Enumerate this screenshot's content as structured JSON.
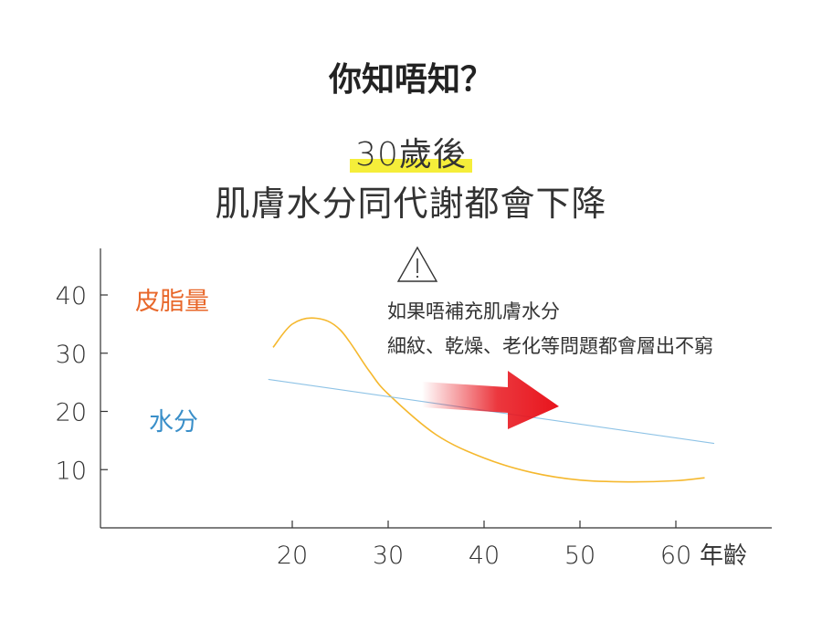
{
  "header": {
    "question": "你知唔知？",
    "highlight": "30歲後",
    "statement": "肌膚水分同代謝都會下降"
  },
  "warning": {
    "icon": "warning-triangle-icon",
    "line1": "如果唔補充肌膚水分",
    "line2": "細紋、乾燥、老化等問題都會層出不窮"
  },
  "colors": {
    "sebum": "#f5b82e",
    "sebum_label": "#e8672a",
    "moisture": "#8ec3e6",
    "moisture_label": "#3a8fc9",
    "highlight": "#f5ee3a",
    "arrow": "#e8141c"
  },
  "chart_data": {
    "type": "line",
    "xlabel": "年齡",
    "ylabel": "",
    "xlim": [
      0,
      70
    ],
    "ylim": [
      0,
      48
    ],
    "x_ticks": [
      20,
      30,
      40,
      50,
      60
    ],
    "y_ticks": [
      10,
      20,
      30,
      40
    ],
    "grid": false,
    "series": [
      {
        "name": "皮脂量",
        "points": [
          [
            18,
            31
          ],
          [
            20,
            35
          ],
          [
            22.5,
            36
          ],
          [
            25,
            34
          ],
          [
            28,
            27
          ],
          [
            30,
            23
          ],
          [
            35,
            16
          ],
          [
            40,
            12
          ],
          [
            45,
            9.5
          ],
          [
            50,
            8.2
          ],
          [
            55,
            7.9
          ],
          [
            60,
            8.1
          ],
          [
            63,
            8.6
          ]
        ]
      },
      {
        "name": "水分",
        "points": [
          [
            17.5,
            25.5
          ],
          [
            64,
            14.5
          ]
        ]
      }
    ]
  }
}
